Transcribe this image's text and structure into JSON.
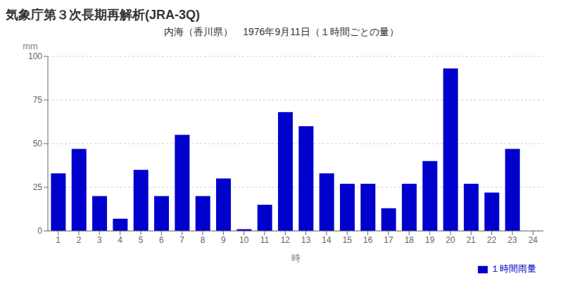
{
  "chart_data": {
    "type": "bar",
    "title": "内海（香川県）　1976年9月11日（１時間ごとの量）",
    "annotations": [
      "気象庁第３次長期再解析(JRA-3Q)"
    ],
    "x_label": "時",
    "y_label": "mm",
    "categories": [
      "1",
      "2",
      "3",
      "4",
      "5",
      "6",
      "7",
      "8",
      "9",
      "10",
      "11",
      "12",
      "13",
      "14",
      "15",
      "16",
      "17",
      "18",
      "19",
      "20",
      "21",
      "22",
      "23",
      "24"
    ],
    "series": [
      {
        "name": "１時間雨量",
        "color": "#0000cc",
        "values": [
          33,
          47,
          20,
          7,
          35,
          20,
          55,
          20,
          30,
          1,
          15,
          68,
          60,
          33,
          27,
          27,
          13,
          27,
          40,
          93,
          27,
          22,
          47,
          0
        ]
      }
    ],
    "ylim": [
      0,
      100
    ],
    "yticks": [
      0,
      25,
      50,
      75,
      100
    ],
    "grid": true,
    "legend": "lower right"
  }
}
